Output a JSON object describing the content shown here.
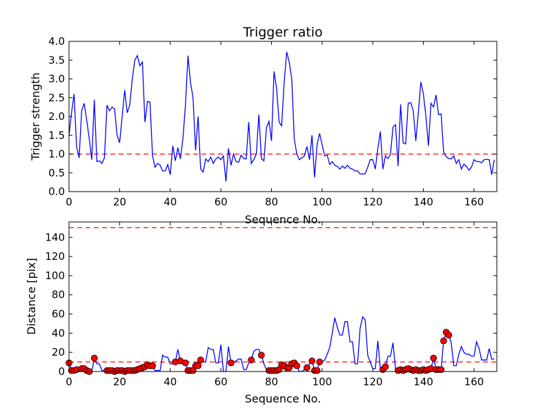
{
  "chart_data": [
    {
      "type": "line",
      "title": "Trigger ratio",
      "xlabel": "Sequence No.",
      "ylabel": "Trigger strength",
      "xlim": [
        0,
        169
      ],
      "ylim": [
        0,
        4
      ],
      "xticks": [
        "0",
        "20",
        "40",
        "60",
        "80",
        "100",
        "120",
        "140",
        "160"
      ],
      "yticks": [
        "0.0",
        "0.5",
        "1.0",
        "1.5",
        "2.0",
        "2.5",
        "3.0",
        "3.5",
        "4.0"
      ],
      "threshold": 1.0,
      "series": [
        {
          "name": "trigger strength",
          "color": "#0000ff",
          "values": [
            1.5,
            2.1,
            2.6,
            1.2,
            0.9,
            2.15,
            2.35,
            1.9,
            1.4,
            0.85,
            2.45,
            0.8,
            0.82,
            0.75,
            0.9,
            2.3,
            2.15,
            2.25,
            2.2,
            1.5,
            1.3,
            2.0,
            2.7,
            2.1,
            2.3,
            3.0,
            3.5,
            3.62,
            3.35,
            3.45,
            1.85,
            2.4,
            2.38,
            0.95,
            0.65,
            0.75,
            0.7,
            0.55,
            0.55,
            0.72,
            0.45,
            1.22,
            0.82,
            1.17,
            0.87,
            1.4,
            2.3,
            3.62,
            2.9,
            2.5,
            1.1,
            2.0,
            0.6,
            0.52,
            0.87,
            0.8,
            0.92,
            0.75,
            0.87,
            0.92,
            0.85,
            0.95,
            0.27,
            1.15,
            0.7,
            1.0,
            0.8,
            0.78,
            0.97,
            0.88,
            0.87,
            1.85,
            0.75,
            0.85,
            1.0,
            2.05,
            0.88,
            0.82,
            1.7,
            1.87,
            1.35,
            3.2,
            2.75,
            1.85,
            1.75,
            2.9,
            3.72,
            3.45,
            3.0,
            1.4,
            1.0,
            0.85,
            0.9,
            0.95,
            1.2,
            0.85,
            1.5,
            0.38,
            1.25,
            1.55,
            1.25,
            0.95,
            0.97,
            0.72,
            0.8,
            0.7,
            0.67,
            0.6,
            0.68,
            0.62,
            0.7,
            0.62,
            0.6,
            0.55,
            0.55,
            0.47,
            0.47,
            0.47,
            0.65,
            0.85,
            0.85,
            0.6,
            1.15,
            1.6,
            0.6,
            0.95,
            0.88,
            1.0,
            1.72,
            1.78,
            0.68,
            2.32,
            1.3,
            1.27,
            2.35,
            2.37,
            2.15,
            1.35,
            2.1,
            2.92,
            2.6,
            2.0,
            1.22,
            2.35,
            2.25,
            2.57,
            2.05,
            2.07,
            1.05,
            0.93,
            0.88,
            0.87,
            0.95,
            0.75,
            0.85,
            0.6,
            0.73,
            0.67,
            0.57,
            0.65,
            0.85,
            0.8,
            0.8,
            0.77,
            0.85,
            0.86,
            0.85,
            0.45,
            0.85
          ]
        }
      ],
      "threshold_color": "#ff0000"
    },
    {
      "type": "line",
      "title": "",
      "xlabel": "Sequence No.",
      "ylabel": "Distance [pix]",
      "xlim": [
        0,
        169
      ],
      "ylim": [
        0,
        156
      ],
      "xticks": [
        "0",
        "20",
        "40",
        "60",
        "80",
        "100",
        "120",
        "140",
        "160"
      ],
      "yticks": [
        "0",
        "20",
        "40",
        "60",
        "80",
        "100",
        "120",
        "140"
      ],
      "thresholds": [
        10,
        150
      ],
      "series": [
        {
          "name": "distance",
          "color": "#0000ff",
          "values": [
            9,
            1,
            1,
            2,
            1,
            3,
            3,
            1,
            0,
            0,
            14,
            8,
            8,
            1,
            1,
            1,
            1,
            1,
            0,
            1,
            1,
            1,
            0,
            1,
            1,
            1,
            1,
            2,
            3,
            4,
            5,
            7,
            6,
            6,
            1,
            1,
            1,
            17,
            15,
            15,
            8,
            8,
            10,
            23,
            11,
            9,
            9,
            1,
            1,
            1,
            6,
            6,
            12,
            10,
            10,
            25,
            23,
            23,
            9,
            9,
            28,
            0,
            0,
            26,
            9,
            10,
            11,
            13,
            13,
            2,
            2,
            9,
            12,
            21,
            23,
            23,
            17,
            8,
            2,
            1,
            1,
            1,
            1,
            2,
            7,
            6,
            4,
            4,
            8,
            9,
            6,
            0,
            0,
            2,
            4,
            8,
            11,
            1,
            1,
            10,
            10,
            12,
            18,
            25,
            40,
            56,
            46,
            38,
            38,
            52,
            52,
            31,
            31,
            8,
            8,
            45,
            57,
            54,
            17,
            10,
            3,
            3,
            32,
            3,
            2,
            5,
            16,
            16,
            30,
            2,
            1,
            2,
            1,
            2,
            3,
            2,
            1,
            2,
            1,
            1,
            2,
            1,
            2,
            3,
            14,
            2,
            2,
            2,
            32,
            41,
            38,
            30,
            6,
            6,
            18,
            26,
            20,
            18,
            18,
            16,
            16,
            31,
            24,
            12,
            12,
            12,
            24,
            13,
            13
          ]
        },
        {
          "name": "flagged",
          "color": "#ff0000",
          "indices": [
            0,
            1,
            2,
            3,
            5,
            6,
            7,
            8,
            10,
            15,
            16,
            17,
            18,
            19,
            20,
            21,
            22,
            23,
            24,
            25,
            26,
            27,
            28,
            29,
            30,
            31,
            32,
            33,
            42,
            44,
            46,
            47,
            48,
            49,
            50,
            51,
            52,
            64,
            72,
            76,
            79,
            80,
            81,
            82,
            83,
            84,
            85,
            86,
            87,
            88,
            89,
            90,
            94,
            96,
            97,
            98,
            99,
            124,
            125,
            130,
            131,
            132,
            133,
            134,
            135,
            136,
            137,
            138,
            139,
            140,
            141,
            142,
            143,
            144,
            145,
            146,
            147,
            148,
            149,
            150
          ]
        }
      ],
      "threshold_color": "#ff0000"
    }
  ]
}
